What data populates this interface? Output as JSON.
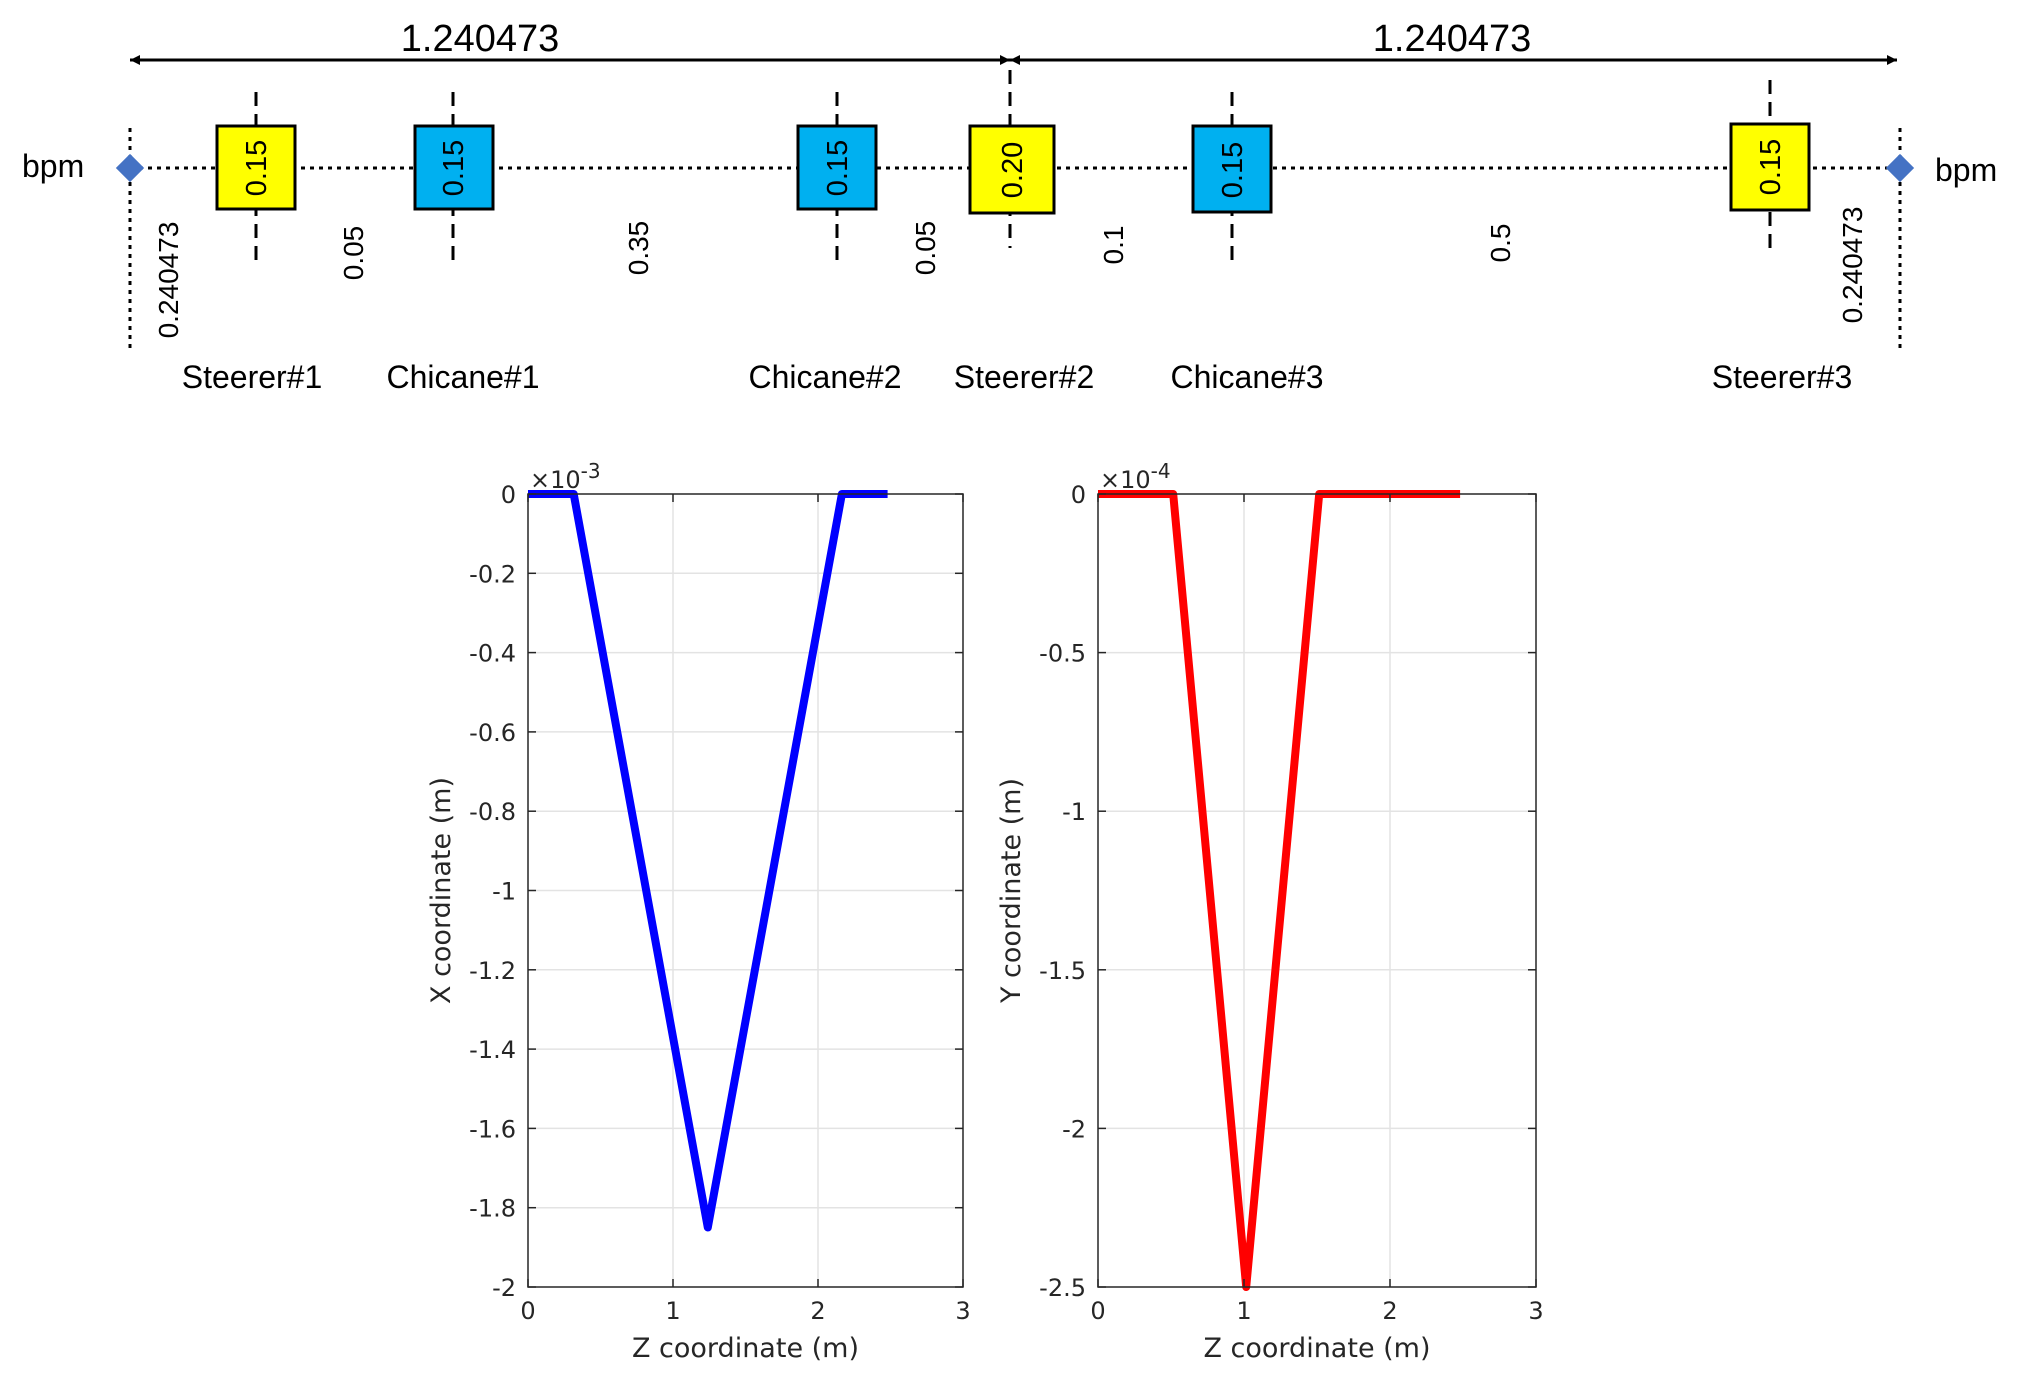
{
  "diagram": {
    "total_lengths": [
      "1.240473",
      "1.240473"
    ],
    "bpm_labels": [
      "bpm",
      "bpm"
    ],
    "elements": [
      {
        "label": "Steerer#1",
        "length": "0.15",
        "color": "#ffff00"
      },
      {
        "label": "Chicane#1",
        "length": "0.15",
        "color": "#00b0f0"
      },
      {
        "label": "Chicane#2",
        "length": "0.15",
        "color": "#00b0f0"
      },
      {
        "label": "Steerer#2",
        "length": "0.20",
        "color": "#ffff00"
      },
      {
        "label": "Chicane#3",
        "length": "0.15",
        "color": "#00b0f0"
      },
      {
        "label": "Steerer#3",
        "length": "0.15",
        "color": "#ffff00"
      }
    ],
    "gaps": [
      "0.240473",
      "0.05",
      "0.35",
      "0.05",
      "0.1",
      "0.5",
      "0.240473"
    ],
    "bpm_color": "#4472c4"
  },
  "chart_data": [
    {
      "type": "line",
      "xlabel": "Z coordinate (m)",
      "ylabel": "X coordinate (m)",
      "multiplier": "×10",
      "exponent": "-3",
      "xlim": [
        0,
        3
      ],
      "ylim": [
        -2,
        0
      ],
      "xticks": [
        "0",
        "1",
        "2",
        "3"
      ],
      "yticks": [
        "0",
        "-0.2",
        "-0.4",
        "-0.6",
        "-0.8",
        "-1",
        "-1.2",
        "-1.4",
        "-1.6",
        "-1.8",
        "-2"
      ],
      "grid": true,
      "color": "#0000ff",
      "x": [
        0,
        0.315,
        1.24,
        2.165,
        2.48
      ],
      "y": [
        0,
        0,
        -1.85,
        0,
        0
      ]
    },
    {
      "type": "line",
      "xlabel": "Z coordinate (m)",
      "ylabel": "Y coordinate (m)",
      "multiplier": "×10",
      "exponent": "-4",
      "xlim": [
        0,
        3
      ],
      "ylim": [
        -2.5,
        0
      ],
      "xticks": [
        "0",
        "1",
        "2",
        "3"
      ],
      "yticks": [
        "0",
        "-0.5",
        "-1",
        "-1.5",
        "-2",
        "-2.5"
      ],
      "grid": true,
      "color": "#ff0000",
      "x": [
        0,
        0.515,
        1.015,
        1.515,
        2.48
      ],
      "y": [
        0,
        0,
        -2.5,
        0,
        0
      ]
    }
  ]
}
